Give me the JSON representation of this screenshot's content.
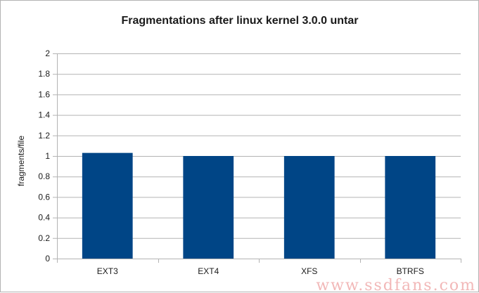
{
  "chart_data": {
    "type": "bar",
    "title": "Fragmentations after linux kernel 3.0.0 untar",
    "xlabel": "",
    "ylabel": "fragments/file",
    "categories": [
      "EXT3",
      "EXT4",
      "XFS",
      "BTRFS"
    ],
    "values": [
      1.03,
      1.0,
      1.0,
      1.0
    ],
    "ylim": [
      0,
      2
    ],
    "yticks": [
      "0",
      "0.2",
      "0.4",
      "0.6",
      "0.8",
      "1",
      "1.2",
      "1.4",
      "1.6",
      "1.8",
      "2"
    ],
    "grid": true,
    "legend": "none"
  },
  "colors": {
    "bar": "#004586",
    "grid": "#b3b3b3"
  },
  "watermark": "www.ssdfans.com"
}
